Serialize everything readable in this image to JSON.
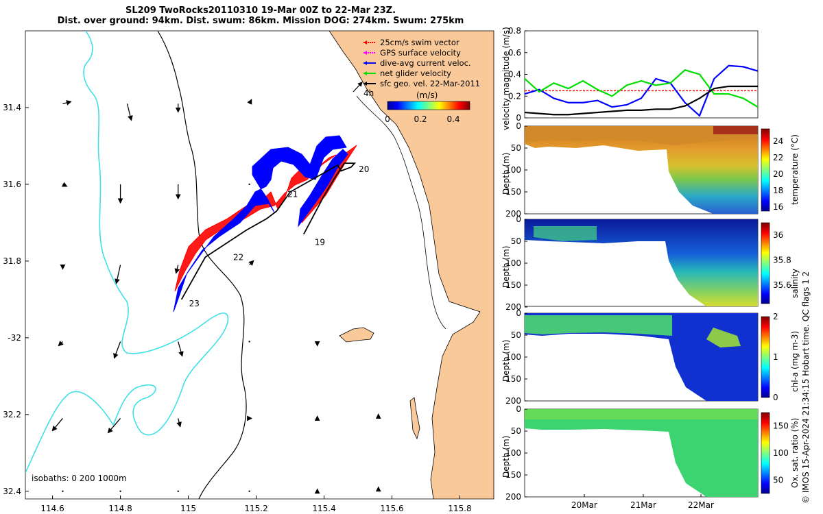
{
  "header": {
    "line1": "SL209 TwoRocks20110310 19-Mar 00Z to 22-Mar 23Z.",
    "line2": "Dist. over ground: 94km. Dist. swum: 86km. Mission DOG: 274km. Swum: 275km"
  },
  "credit": "© IMOS 15-Apr-2024 21:34:15 Hobart time. QC flags 1  2",
  "colors": {
    "land": "#f9c99a",
    "isobath": "#3fe0e6",
    "swim": "#ff0000",
    "dac": "#0000ff",
    "net": "#00dd00",
    "track": "#000000"
  },
  "chart_data": [
    {
      "type": "map",
      "xlim": [
        114.52,
        115.9
      ],
      "ylim": [
        -32.42,
        -31.2
      ],
      "x_ticks": [
        114.6,
        114.8,
        115,
        115.2,
        115.4,
        115.6,
        115.8
      ],
      "x_tick_labels": [
        "114.6",
        "114.8",
        "115",
        "115.2",
        "115.4",
        "115.6",
        "115.8"
      ],
      "y_ticks": [
        -31.4,
        -31.6,
        -31.8,
        -32,
        -32.2,
        -32.4
      ],
      "y_tick_labels": [
        "31.4",
        "31.6",
        "31.8",
        "-32",
        "32.2",
        "32.4"
      ],
      "legend": [
        {
          "label": "25cm/s swim vector",
          "color": "#ff0000"
        },
        {
          "label": "GPS surface velocity",
          "color": "#ff00ff"
        },
        {
          "label": "dive-avg current veloc.",
          "color": "#0000ff"
        },
        {
          "label": "net glider velocity",
          "color": "#00dd00"
        },
        {
          "label": "sfc geo. vel. 22-Mar-2011",
          "color": "#000000"
        }
      ],
      "legend_position": "top-right",
      "scale_arrow_label": "4h",
      "colorbar": {
        "title": "(m/s)",
        "range": [
          0,
          0.5
        ],
        "ticks": [
          0,
          0.2,
          0.4
        ],
        "tick_labels": [
          "0",
          "0.2",
          "0.4"
        ]
      },
      "isobaths_note": "isobaths: 0   200  1000m",
      "track": {
        "lon": [
          115.34,
          115.37,
          115.4,
          115.43,
          115.46,
          115.49,
          115.48,
          115.45,
          115.44,
          115.3,
          115.26,
          115.23,
          115.17,
          115.05,
          114.98
        ],
        "lat": [
          -31.73,
          -31.68,
          -31.63,
          -31.585,
          -31.545,
          -31.545,
          -31.555,
          -31.565,
          -31.55,
          -31.62,
          -31.67,
          -31.69,
          -31.72,
          -31.79,
          -31.9
        ]
      },
      "day_labels": [
        {
          "text": "19",
          "lon": 115.36,
          "lat": -31.74
        },
        {
          "text": "20",
          "lon": 115.49,
          "lat": -31.55
        },
        {
          "text": "21",
          "lon": 115.28,
          "lat": -31.615
        },
        {
          "text": "22",
          "lon": 115.12,
          "lat": -31.78
        },
        {
          "text": "23",
          "lon": 114.99,
          "lat": -31.9
        }
      ],
      "sfc_geo_vel_vectors": [
        {
          "lon": 114.63,
          "lat": -31.39,
          "u": 0.02,
          "v": 0.005
        },
        {
          "lon": 114.82,
          "lat": -31.39,
          "u": 0.01,
          "v": -0.04
        },
        {
          "lon": 114.97,
          "lat": -31.39,
          "u": 0.0,
          "v": -0.02
        },
        {
          "lon": 115.18,
          "lat": -31.39,
          "u": 0.005,
          "v": 0.01
        },
        {
          "lon": 114.63,
          "lat": -31.6,
          "u": 0.01,
          "v": -0.005
        },
        {
          "lon": 114.8,
          "lat": -31.6,
          "u": 0.0,
          "v": -0.045
        },
        {
          "lon": 114.97,
          "lat": -31.6,
          "u": 0.0,
          "v": -0.035
        },
        {
          "lon": 115.18,
          "lat": -31.6,
          "u": 0.0,
          "v": 0.0
        },
        {
          "lon": 114.63,
          "lat": -31.81,
          "u": 0.0,
          "v": -0.01
        },
        {
          "lon": 114.8,
          "lat": -31.81,
          "u": -0.01,
          "v": -0.045
        },
        {
          "lon": 114.97,
          "lat": -31.81,
          "u": -0.005,
          "v": -0.02
        },
        {
          "lon": 115.18,
          "lat": -31.81,
          "u": 0.01,
          "v": 0.01
        },
        {
          "lon": 114.63,
          "lat": -32.01,
          "u": -0.01,
          "v": -0.01
        },
        {
          "lon": 114.8,
          "lat": -32.01,
          "u": -0.015,
          "v": -0.04
        },
        {
          "lon": 114.97,
          "lat": -32.01,
          "u": 0.01,
          "v": -0.035
        },
        {
          "lon": 115.18,
          "lat": -32.01,
          "u": -0.002,
          "v": 0.0
        },
        {
          "lon": 115.38,
          "lat": -32.01,
          "u": 0.0,
          "v": -0.01
        },
        {
          "lon": 114.63,
          "lat": -32.21,
          "u": -0.025,
          "v": -0.03
        },
        {
          "lon": 114.8,
          "lat": -32.21,
          "u": -0.03,
          "v": -0.035
        },
        {
          "lon": 114.97,
          "lat": -32.21,
          "u": 0.005,
          "v": -0.02
        },
        {
          "lon": 115.18,
          "lat": -32.21,
          "u": 0.005,
          "v": 0.0
        },
        {
          "lon": 115.38,
          "lat": -32.21,
          "u": 0.0,
          "v": 0.005
        },
        {
          "lon": 115.56,
          "lat": -32.21,
          "u": 0.0,
          "v": 0.01
        },
        {
          "lon": 114.63,
          "lat": -32.4,
          "u": 0.0,
          "v": 0.0
        },
        {
          "lon": 114.8,
          "lat": -32.4,
          "u": 0.0,
          "v": 0.0
        },
        {
          "lon": 114.97,
          "lat": -32.4,
          "u": 0.0,
          "v": 0.0
        },
        {
          "lon": 115.18,
          "lat": -32.4,
          "u": 0.0,
          "v": 0.0
        },
        {
          "lon": 115.38,
          "lat": -32.4,
          "u": 0.0,
          "v": 0.005
        },
        {
          "lon": 115.56,
          "lat": -32.4,
          "u": 0.0,
          "v": 0.01
        }
      ]
    },
    {
      "type": "line",
      "ylabel": "velocity magnitude (m/s)",
      "ylim": [
        0,
        0.8
      ],
      "y_ticks": [
        0,
        0.2,
        0.4,
        0.6,
        0.8
      ],
      "y_tick_labels": [
        "0",
        "0.2",
        "0.4",
        "0.6",
        "0.8"
      ],
      "x": [
        0,
        0.25,
        0.5,
        0.75,
        1,
        1.25,
        1.5,
        1.75,
        2,
        2.25,
        2.5,
        2.75,
        3,
        3.25,
        3.5,
        3.75,
        4
      ],
      "x_units": "days since 19-Mar 00Z",
      "series": [
        {
          "color": "#ff0000",
          "values": [
            0.25,
            0.25,
            0.25,
            0.25,
            0.25,
            0.25,
            0.25,
            0.25,
            0.25,
            0.25,
            0.25,
            0.25,
            0.25,
            0.25,
            0.25,
            0.25,
            0.25
          ]
        },
        {
          "color": "#0000ff",
          "values": [
            0.22,
            0.26,
            0.18,
            0.14,
            0.14,
            0.16,
            0.1,
            0.12,
            0.18,
            0.36,
            0.32,
            0.14,
            0.02,
            0.36,
            0.48,
            0.47,
            0.43
          ]
        },
        {
          "color": "#00dd00",
          "values": [
            0.36,
            0.24,
            0.32,
            0.27,
            0.34,
            0.26,
            0.2,
            0.3,
            0.34,
            0.3,
            0.32,
            0.44,
            0.4,
            0.22,
            0.22,
            0.18,
            0.1
          ]
        },
        {
          "color": "#000000",
          "values": [
            0.05,
            0.04,
            0.03,
            0.03,
            0.04,
            0.05,
            0.06,
            0.07,
            0.07,
            0.08,
            0.08,
            0.11,
            0.18,
            0.27,
            0.29,
            0.29,
            0.29
          ]
        }
      ]
    },
    {
      "type": "heatmap",
      "ylabel": "Depth (m)",
      "cbar_label": "temperature (°C)",
      "ylim": [
        0,
        200
      ],
      "y_ticks": [
        0,
        50,
        100,
        150,
        200
      ],
      "cbar_ticks": [
        "16",
        "18",
        "20",
        "22",
        "24"
      ],
      "cbar_range": [
        15.5,
        25.5
      ]
    },
    {
      "type": "heatmap",
      "ylabel": "Depth (m)",
      "cbar_label": "salinity",
      "ylim": [
        0,
        200
      ],
      "y_ticks": [
        0,
        50,
        100,
        150,
        200
      ],
      "cbar_ticks": [
        "35.6",
        "35.8",
        "36"
      ],
      "cbar_range": [
        35.45,
        36.1
      ]
    },
    {
      "type": "heatmap",
      "ylabel": "Depth (m)",
      "cbar_label": "chl-a (mg m-3)",
      "ylim": [
        0,
        200
      ],
      "y_ticks": [
        0,
        50,
        100,
        150,
        200
      ],
      "cbar_ticks": [
        "0",
        "1",
        "2"
      ],
      "cbar_range": [
        0,
        2
      ]
    },
    {
      "type": "heatmap",
      "ylabel": "Depth (m)",
      "cbar_label": "Ox. sat. ratio (%)",
      "ylim": [
        0,
        200
      ],
      "y_ticks": [
        0,
        50,
        100,
        150,
        200
      ],
      "cbar_ticks": [
        "50",
        "100",
        "150"
      ],
      "cbar_range": [
        25,
        175
      ],
      "x_tick_labels": [
        "20Mar",
        "21Mar",
        "22Mar"
      ]
    }
  ]
}
